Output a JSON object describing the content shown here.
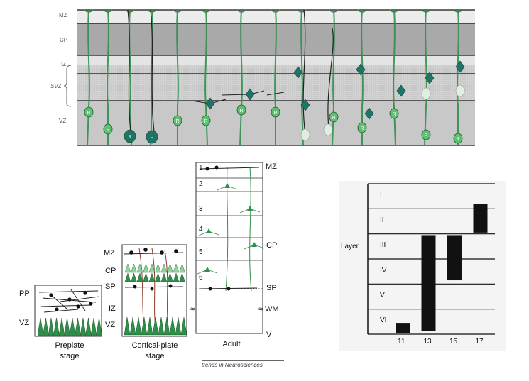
{
  "top_panel": {
    "layers": [
      "MZ",
      "CP",
      "IZ",
      "SVZ",
      "VZ"
    ],
    "cell_letter": "R"
  },
  "stage_panels": {
    "preplate": {
      "labels": [
        "PP",
        "VZ"
      ],
      "caption_line1": "Preplate",
      "caption_line2": "stage"
    },
    "cortical_plate": {
      "labels": [
        "MZ",
        "CP",
        "SP",
        "IZ",
        "VZ"
      ],
      "caption_line1": "Cortical-plate",
      "caption_line2": "stage"
    },
    "adult": {
      "layer_numbers": [
        "1",
        "2",
        "3",
        "4",
        "5",
        "6"
      ],
      "right_labels": [
        "MZ",
        "CP",
        "SP",
        "WM",
        "V"
      ],
      "break_mark": "≈",
      "caption": "Adult"
    },
    "credit": "trends in Neurosciences"
  },
  "chart_data": {
    "type": "bar",
    "ylabel": "Layer",
    "layers": [
      "I",
      "II",
      "III",
      "IV",
      "V",
      "VI"
    ],
    "categories": [
      "11",
      "13",
      "15",
      "17"
    ],
    "ranges": [
      {
        "x": "11",
        "from": "VI",
        "to": "VI"
      },
      {
        "x": "13",
        "from": "VI",
        "to": "III"
      },
      {
        "x": "15",
        "from": "IV",
        "to": "III"
      },
      {
        "x": "17",
        "from": "II",
        "to": "II"
      }
    ]
  },
  "colors": {
    "cell_green": "#2f8f4a",
    "light_green": "#8fd49a",
    "teal": "#1e7466",
    "gray_band": "#a7a7a7",
    "dark_bar": "#111111"
  }
}
